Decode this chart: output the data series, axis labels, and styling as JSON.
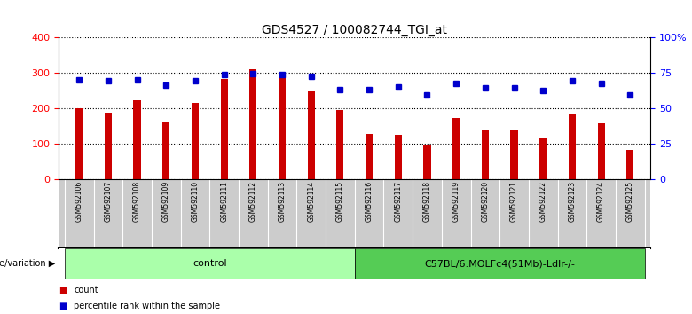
{
  "title": "GDS4527 / 100082744_TGI_at",
  "samples": [
    "GSM592106",
    "GSM592107",
    "GSM592108",
    "GSM592109",
    "GSM592110",
    "GSM592111",
    "GSM592112",
    "GSM592113",
    "GSM592114",
    "GSM592115",
    "GSM592116",
    "GSM592117",
    "GSM592118",
    "GSM592119",
    "GSM592120",
    "GSM592121",
    "GSM592122",
    "GSM592123",
    "GSM592124",
    "GSM592125"
  ],
  "counts": [
    200,
    187,
    222,
    160,
    215,
    283,
    312,
    298,
    248,
    195,
    127,
    124,
    96,
    173,
    138,
    140,
    115,
    183,
    158,
    82
  ],
  "percentile_ranks": [
    70,
    69.3,
    70,
    66.3,
    69.3,
    73.8,
    74.5,
    73.8,
    72.5,
    63.3,
    63.3,
    65,
    59.5,
    67.5,
    64.5,
    64.3,
    62.5,
    69.5,
    67.5,
    59.3
  ],
  "group1_label": "control",
  "group1_count": 10,
  "group2_label": "C57BL/6.MOLFc4(51Mb)-Ldlr-/-",
  "group2_count": 10,
  "bar_color": "#cc0000",
  "dot_color": "#0000cc",
  "group1_bg": "#aaffaa",
  "group2_bg": "#55cc55",
  "sample_bg": "#cccccc",
  "left_ylim": [
    0,
    400
  ],
  "left_yticks": [
    0,
    100,
    200,
    300,
    400
  ],
  "right_ylim": [
    0,
    100
  ],
  "right_yticks": [
    0,
    25,
    50,
    75,
    100
  ],
  "right_yticklabels": [
    "0",
    "25",
    "50",
    "75",
    "100%"
  ],
  "legend_count_label": "count",
  "legend_pct_label": "percentile rank within the sample",
  "genotype_label": "genotype/variation"
}
